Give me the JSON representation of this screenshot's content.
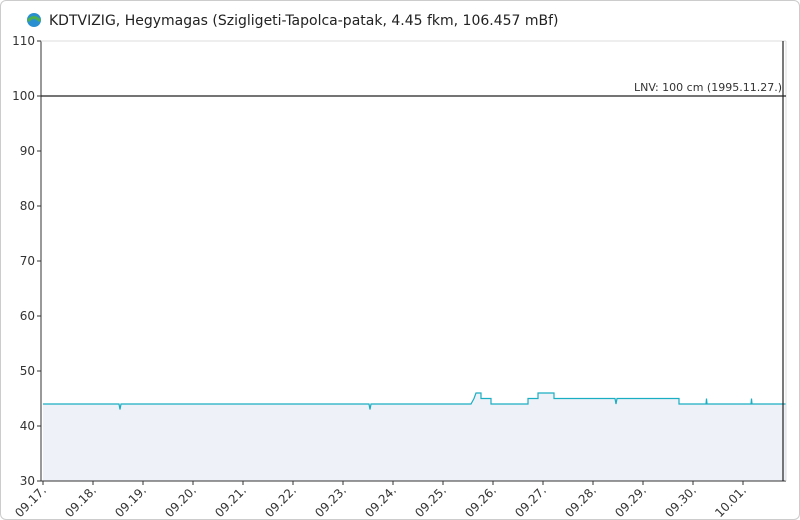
{
  "chart_data": {
    "type": "line",
    "title": "KDTVIZIG, Hegymagas (Szigligeti-Tapolca-patak, 4.45 fkm, 106.457 mBf)",
    "xlim": [
      -0.04,
      14.86
    ],
    "ylim": [
      30,
      110
    ],
    "yticks": [
      30,
      40,
      50,
      60,
      70,
      80,
      90,
      100,
      110
    ],
    "xticks": [
      {
        "value": 0,
        "label": "09.17."
      },
      {
        "value": 1,
        "label": "09.18."
      },
      {
        "value": 2,
        "label": "09.19."
      },
      {
        "value": 3,
        "label": "09.20."
      },
      {
        "value": 4,
        "label": "09.21."
      },
      {
        "value": 5,
        "label": "09.22."
      },
      {
        "value": 6,
        "label": "09.23."
      },
      {
        "value": 7,
        "label": "09.24."
      },
      {
        "value": 8,
        "label": "09.25."
      },
      {
        "value": 9,
        "label": "09.26."
      },
      {
        "value": 10,
        "label": "09.27."
      },
      {
        "value": 11,
        "label": "09.28."
      },
      {
        "value": 12,
        "label": "09.29."
      },
      {
        "value": 13,
        "label": "09.30."
      },
      {
        "value": 14,
        "label": "10.01."
      }
    ],
    "series": [
      {
        "color": "#1aaec2",
        "area_color": "#eef1f7",
        "x": [
          0,
          1.52,
          1.54,
          1.56,
          6.52,
          6.54,
          6.56,
          8.56,
          8.62,
          8.66,
          8.76,
          8.76,
          8.96,
          8.96,
          9.7,
          9.7,
          9.9,
          9.9,
          10.22,
          10.22,
          11.44,
          11.46,
          11.48,
          12.72,
          12.72,
          13.26,
          13.27,
          13.28,
          14.16,
          14.17,
          14.18,
          14.86
        ],
        "values": [
          44,
          44,
          43,
          44,
          44,
          43,
          44,
          44,
          45,
          46,
          46,
          45,
          45,
          44,
          44,
          45,
          45,
          46,
          46,
          45,
          45,
          44,
          45,
          45,
          44,
          44,
          45,
          44,
          44,
          45,
          44,
          44
        ]
      }
    ],
    "reference_line": {
      "value": 100,
      "label": "LNV: 100 cm (1995.11.27.)",
      "color": "#222"
    },
    "now_line": {
      "value": 14.8,
      "color": "#222"
    }
  }
}
